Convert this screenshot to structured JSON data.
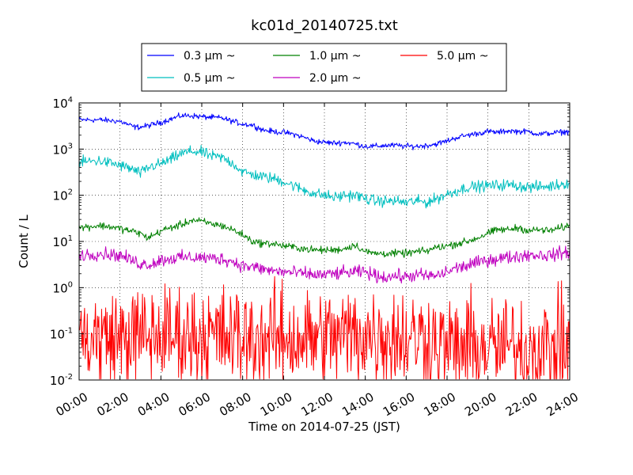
{
  "chart_data": {
    "type": "line",
    "title": "kc01d_20140725.txt",
    "xlabel": "Time on 2014-07-25 (JST)",
    "ylabel": "Count / L",
    "yscale": "log",
    "ylim": [
      0.01,
      10000
    ],
    "xlim": [
      0,
      24
    ],
    "grid": true,
    "legend_position": "top-center (above plot)",
    "x_ticks": [
      "00:00",
      "02:00",
      "04:00",
      "06:00",
      "08:00",
      "10:00",
      "12:00",
      "14:00",
      "16:00",
      "18:00",
      "20:00",
      "22:00",
      "24:00"
    ],
    "y_ticks": [
      {
        "base": "10",
        "exp": "-2"
      },
      {
        "base": "10",
        "exp": "-1"
      },
      {
        "base": "10",
        "exp": "0"
      },
      {
        "base": "10",
        "exp": "1"
      },
      {
        "base": "10",
        "exp": "2"
      },
      {
        "base": "10",
        "exp": "3"
      },
      {
        "base": "10",
        "exp": "4"
      }
    ],
    "series": [
      {
        "name": "0.3 μm ~",
        "color": "#0000ff",
        "noise": 0.03,
        "x": [
          0,
          1,
          2,
          2.7,
          3,
          3.5,
          4,
          4.5,
          5,
          5.5,
          6,
          7,
          7.5,
          8,
          8.5,
          9,
          9.5,
          10,
          10.5,
          11,
          11.5,
          12,
          12.5,
          13,
          13.5,
          14,
          14.5,
          15,
          15.5,
          16,
          16.5,
          17,
          17.5,
          18,
          18.5,
          19,
          20,
          20.5,
          21,
          21.5,
          22,
          22.5,
          23,
          24
        ],
        "y": [
          4300,
          4300,
          4000,
          3000,
          3000,
          3300,
          3800,
          4500,
          5300,
          5300,
          5000,
          4700,
          4000,
          3500,
          3300,
          2600,
          2400,
          2300,
          2100,
          1800,
          1500,
          1400,
          1350,
          1400,
          1300,
          1150,
          1150,
          1200,
          1200,
          1150,
          1150,
          1200,
          1300,
          1500,
          1800,
          2000,
          2400,
          2300,
          2500,
          2400,
          2400,
          2100,
          2200,
          2400
        ]
      },
      {
        "name": "0.5 μm ~",
        "color": "#00bfbf",
        "noise": 0.06,
        "x": [
          0,
          1,
          1.7,
          2.5,
          3,
          3.5,
          4,
          4.5,
          5,
          5.5,
          6,
          6.5,
          7,
          7.5,
          8,
          8.5,
          9,
          9.5,
          10,
          10.5,
          11,
          11.5,
          12,
          12.5,
          13,
          13.5,
          14,
          14.5,
          15,
          15.5,
          16,
          16.5,
          17,
          17.5,
          18,
          19,
          20,
          21,
          22,
          23,
          24
        ],
        "y": [
          520,
          560,
          480,
          380,
          300,
          420,
          480,
          600,
          800,
          900,
          850,
          700,
          650,
          500,
          320,
          280,
          250,
          230,
          200,
          160,
          130,
          110,
          100,
          90,
          100,
          100,
          85,
          75,
          75,
          75,
          70,
          75,
          70,
          85,
          105,
          150,
          160,
          170,
          150,
          155,
          190
        ]
      },
      {
        "name": "1.0 μm ~",
        "color": "#008000",
        "noise": 0.04,
        "x": [
          0,
          1,
          1.5,
          2,
          2.5,
          3,
          3.3,
          3.7,
          4,
          4.5,
          5,
          5.5,
          6,
          6.5,
          7,
          7.5,
          8,
          8.5,
          9,
          9.5,
          10,
          10.5,
          11,
          11.5,
          12,
          12.5,
          13,
          13.5,
          14,
          14.5,
          15,
          15.5,
          16,
          16.5,
          17,
          17.5,
          18,
          18.5,
          19,
          19.5,
          20,
          20.5,
          21,
          21.5,
          22,
          22.5,
          23,
          24
        ],
        "y": [
          20,
          22,
          21,
          19,
          17,
          15,
          12,
          14,
          17,
          20,
          23,
          29,
          27,
          24,
          22,
          18,
          14,
          10,
          9,
          9,
          8,
          7.5,
          7,
          6.5,
          6.5,
          6.5,
          7,
          8.5,
          6,
          5.5,
          5.5,
          5.5,
          5.5,
          6,
          6.2,
          7.5,
          8,
          9,
          10,
          12,
          15,
          18,
          18,
          20,
          17,
          18,
          17,
          22
        ]
      },
      {
        "name": "2.0 μm ~",
        "color": "#bf00bf",
        "noise": 0.07,
        "x": [
          0,
          1,
          2,
          2.5,
          3,
          3.5,
          4,
          5,
          6,
          6.5,
          7,
          7.5,
          8,
          8.5,
          9,
          9.5,
          10,
          10.5,
          11,
          11.5,
          12,
          13,
          14,
          14.5,
          15,
          15.5,
          16,
          16.5,
          17,
          17.5,
          18,
          18.5,
          19,
          20,
          21,
          22,
          23,
          24
        ],
        "y": [
          5,
          5.5,
          5,
          4,
          3.3,
          3.2,
          4,
          4.5,
          4.5,
          4.3,
          4.2,
          3.7,
          3,
          2.8,
          2.5,
          2.3,
          2.2,
          2.1,
          2,
          1.9,
          1.9,
          2.1,
          2.2,
          1.8,
          1.7,
          1.8,
          1.7,
          1.9,
          1.8,
          1.8,
          2.2,
          2.7,
          3,
          4,
          4.5,
          5.2,
          5,
          6
        ]
      },
      {
        "name": "5.0 μm ~",
        "color": "#ff0000",
        "noise": 0.55,
        "x": [
          0,
          2,
          4,
          6,
          8,
          10,
          12,
          14,
          15,
          16,
          17,
          17.5,
          18,
          20,
          22,
          24
        ],
        "y": [
          0.08,
          0.08,
          0.09,
          0.09,
          0.08,
          0.08,
          0.08,
          0.1,
          0.09,
          0.08,
          0.09,
          0.06,
          0.05,
          0.05,
          0.05,
          0.05
        ]
      }
    ]
  }
}
